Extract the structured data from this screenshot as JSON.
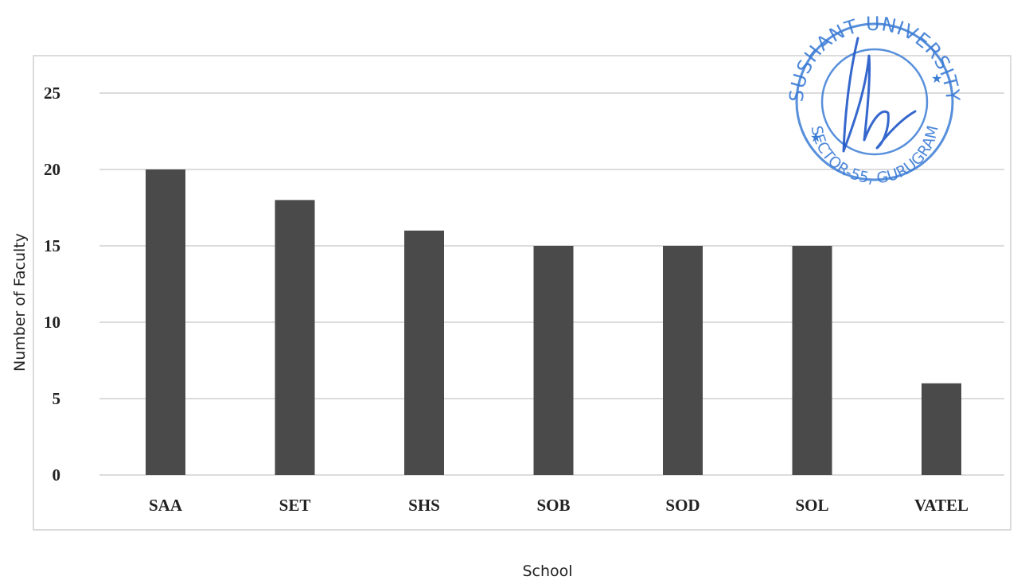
{
  "chart_data": {
    "type": "bar",
    "title": "",
    "xlabel": "School",
    "ylabel": "Number of Faculty",
    "categories": [
      "SAA",
      "SET",
      "SHS",
      "SOB",
      "SOD",
      "SOL",
      "VATEL"
    ],
    "values": [
      20,
      18,
      16,
      15,
      15,
      15,
      6
    ],
    "ylim": [
      0,
      25
    ],
    "yticks": [
      0,
      5,
      10,
      15,
      20,
      25
    ],
    "grid": true,
    "legend": "none",
    "bar_color": "#4a4a4a"
  },
  "stamp": {
    "top_text": "SUSHANT UNIVERSITY",
    "bottom_text": "SECTOR-55, GURUGRAM",
    "color": "#3a7bd5"
  }
}
